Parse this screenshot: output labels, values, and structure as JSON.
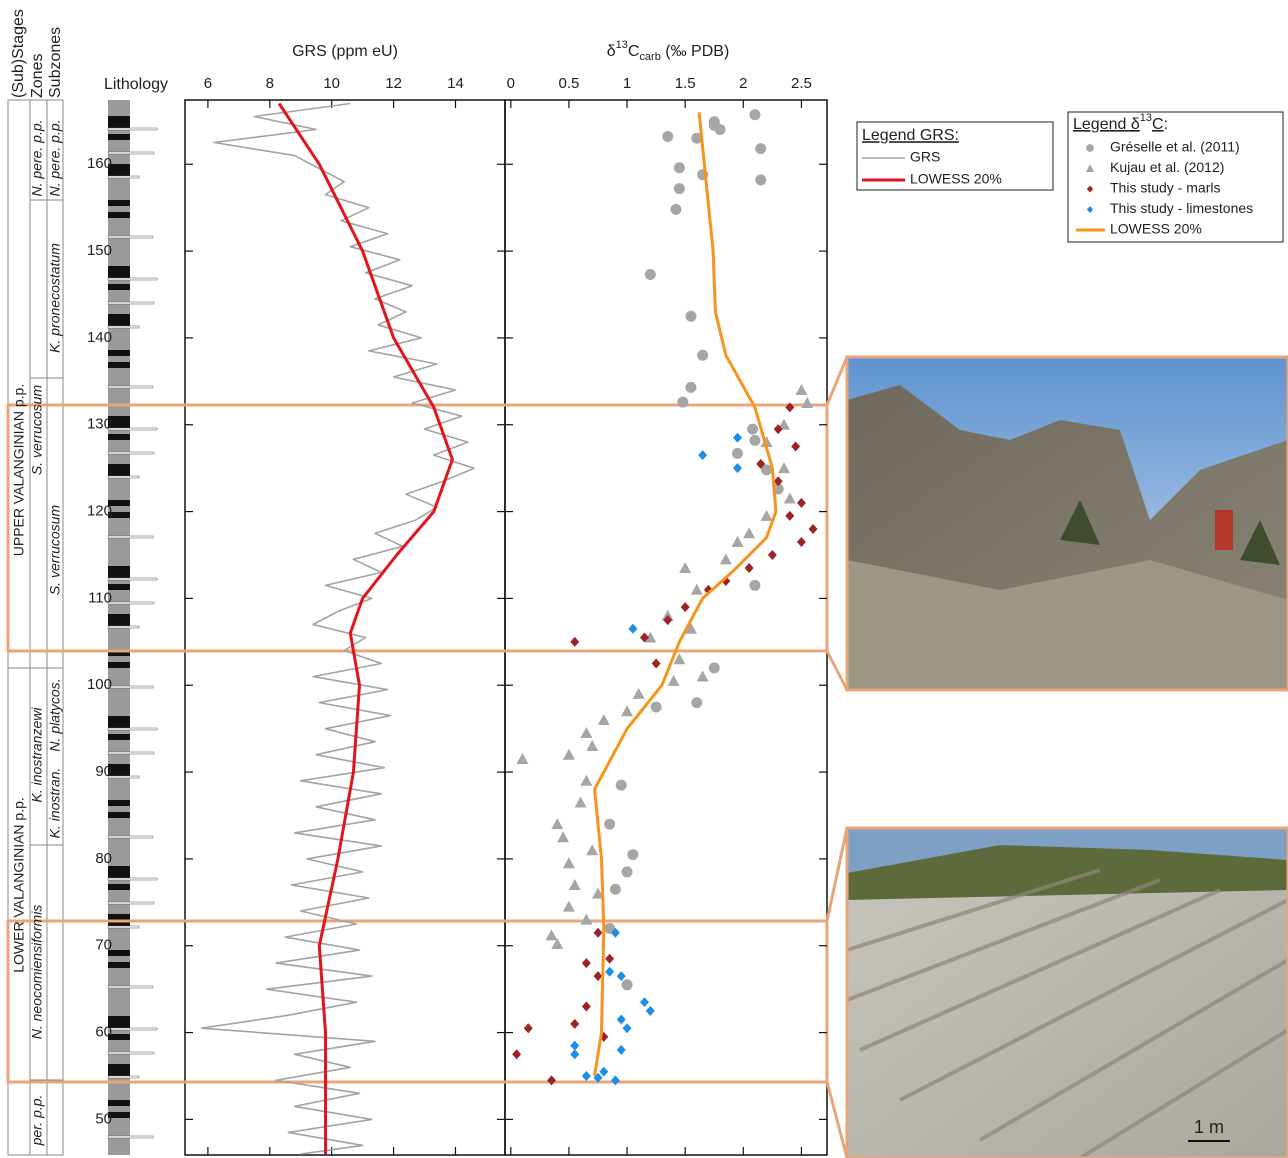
{
  "depth_axis": {
    "ylim": [
      45.9,
      167.4
    ],
    "yticks": [
      50,
      60,
      70,
      80,
      90,
      100,
      110,
      120,
      130,
      140,
      150,
      160
    ]
  },
  "headers": {
    "stages": "(Sub)Stages",
    "zones": "Zones",
    "subzones": "Subzones",
    "lithology": "Lithology"
  },
  "columns": {
    "stages": [
      "UPPER VALANGINIAN p.p.",
      "LOWER VALANGINIAN p.p."
    ],
    "zones": [
      "N. pere. p.p.",
      "S. verrucosum",
      "K. inostranzewi",
      "N. neocomiensiformis",
      "per. p.p."
    ],
    "subzones": [
      "N. pere. p.p.",
      "K. pronecostatum",
      "S. verrucosum",
      "N. platycos.",
      "K. inostran."
    ]
  },
  "chart_data": [
    {
      "type": "line",
      "title": "GRS (ppm eU)",
      "xlim": [
        5.26,
        15.6
      ],
      "xticks": [
        6,
        8,
        10,
        12,
        14
      ],
      "legend_title": "Legend GRS:",
      "series": [
        {
          "name": "GRS",
          "color": "#a3a3a3",
          "marker": "line",
          "depth": [
            167,
            165.5,
            164,
            162.5,
            161,
            159.5,
            158,
            156.5,
            155,
            153.5,
            152,
            150.5,
            149,
            147.5,
            146,
            144.5,
            143,
            141.5,
            140,
            138.5,
            137,
            135.5,
            134,
            132.5,
            131,
            129.5,
            128,
            126.5,
            125,
            123.5,
            122,
            120.5,
            119,
            117.5,
            116,
            114.5,
            113,
            111.5,
            110,
            108.5,
            107,
            105.5,
            104,
            102.5,
            101,
            99.5,
            98,
            96.5,
            95,
            93.5,
            92,
            90.5,
            89,
            87.5,
            86,
            84.5,
            83,
            81.5,
            80,
            78.5,
            77,
            75.5,
            74,
            72.5,
            71,
            69.5,
            68,
            66.5,
            65,
            63.5,
            62,
            60.5,
            59,
            57.5,
            56,
            54.5,
            53,
            51.5,
            50,
            48.5,
            47,
            46
          ],
          "values": [
            10.6,
            7.5,
            9.5,
            6.2,
            8.8,
            9.6,
            10.4,
            9.8,
            11.2,
            10.3,
            11.8,
            10.6,
            12.2,
            11.1,
            12.6,
            11.4,
            12.4,
            11.5,
            12.9,
            11.2,
            13.4,
            12.0,
            14.0,
            12.6,
            14.2,
            13.0,
            14.4,
            13.3,
            14.6,
            13.6,
            12.4,
            13.4,
            12.7,
            11.4,
            12.3,
            10.7,
            11.6,
            9.8,
            11.3,
            10.2,
            9.4,
            11.1,
            10.4,
            11.6,
            9.4,
            11.8,
            9.6,
            11.9,
            9.8,
            11.4,
            9.5,
            11.7,
            9.0,
            11.6,
            9.5,
            11.4,
            8.8,
            11.6,
            9.2,
            11.0,
            8.7,
            11.2,
            9.0,
            10.8,
            8.5,
            10.9,
            8.2,
            11.3,
            7.9,
            10.8,
            8.6,
            5.8,
            11.4,
            8.8,
            10.6,
            8.2,
            10.9,
            8.8,
            11.3,
            8.6,
            11.0,
            9.0
          ]
        },
        {
          "name": "LOWESS 20%",
          "color": "#e3141c",
          "marker": "thick-line",
          "depth": [
            167,
            160,
            150,
            140,
            132,
            126,
            120,
            115,
            110,
            106,
            100,
            90,
            80,
            70,
            60,
            50,
            46
          ],
          "values": [
            8.3,
            9.6,
            11.0,
            12.0,
            13.3,
            13.9,
            13.3,
            12.1,
            11.0,
            10.6,
            10.9,
            10.7,
            10.2,
            9.6,
            9.8,
            9.8,
            9.8
          ]
        }
      ]
    },
    {
      "type": "scatter",
      "title": [
        "δ",
        "13",
        "C",
        "carb",
        " (‰ PDB)"
      ],
      "xlim": [
        -0.05,
        2.72
      ],
      "xticks": [
        0,
        0.5,
        1,
        1.5,
        2,
        2.5
      ],
      "legend_title": [
        "Legend δ",
        "13",
        "C",
        ":"
      ],
      "series": [
        {
          "name": "Gréselle et al. (2011)",
          "color": "#a6a6a6",
          "marker": "circle",
          "depth": [
            165.7,
            164.9,
            164.5,
            164,
            163.2,
            163,
            161.8,
            159.6,
            158.8,
            158.2,
            157.2,
            154.8,
            147.3,
            142.5,
            138,
            134.3,
            132.6,
            129.5,
            128.2,
            126.7,
            124.8,
            122.6,
            111.5,
            102,
            98,
            97.5,
            88.5,
            84,
            80.5,
            78.5,
            76.5,
            72,
            65.5
          ],
          "values": [
            2.1,
            1.75,
            1.75,
            1.8,
            1.35,
            1.6,
            2.15,
            1.45,
            1.65,
            2.15,
            1.45,
            1.42,
            1.2,
            1.55,
            1.65,
            1.55,
            1.48,
            2.08,
            2.1,
            1.95,
            2.2,
            2.3,
            2.1,
            1.75,
            1.6,
            1.25,
            0.95,
            0.85,
            1.05,
            1.0,
            0.9,
            0.85,
            1.0
          ]
        },
        {
          "name": "Kujau et al. (2012)",
          "color": "#a6a6a6",
          "marker": "triangle",
          "depth": [
            134,
            132.5,
            130,
            128,
            125,
            121.5,
            119.5,
            117.5,
            116.5,
            114.5,
            113.5,
            111,
            108,
            106.5,
            105.5,
            103,
            101,
            100.5,
            99,
            97,
            96,
            94.5,
            93,
            92,
            91.5,
            89,
            86.5,
            84,
            82.5,
            81,
            79.5,
            77,
            76,
            74.5,
            73,
            71.2,
            70.2
          ],
          "values": [
            2.5,
            2.55,
            2.35,
            2.2,
            2.35,
            2.4,
            2.2,
            2.05,
            1.95,
            1.85,
            1.5,
            1.6,
            1.35,
            1.55,
            1.2,
            1.45,
            1.65,
            1.4,
            1.1,
            1.0,
            0.8,
            0.65,
            0.7,
            0.5,
            0.1,
            0.65,
            0.6,
            0.4,
            0.45,
            0.7,
            0.5,
            0.55,
            0.75,
            0.5,
            0.65,
            0.35,
            0.4
          ]
        },
        {
          "name": "This study - marls",
          "color": "#9b2525",
          "marker": "diamond",
          "depth": [
            132,
            129.5,
            127.5,
            125.5,
            123.5,
            121,
            119.5,
            118,
            116.5,
            115,
            113.5,
            112,
            111,
            109,
            107.5,
            105.5,
            105,
            102.5,
            71.5,
            68.5,
            68,
            66.5,
            63,
            61,
            60.5,
            59.5,
            57.5,
            54.5
          ],
          "values": [
            2.4,
            2.3,
            2.45,
            2.15,
            2.3,
            2.5,
            2.4,
            2.6,
            2.5,
            2.25,
            2.05,
            1.85,
            1.7,
            1.5,
            1.35,
            1.15,
            0.55,
            1.25,
            0.75,
            0.85,
            0.65,
            0.75,
            0.65,
            0.55,
            0.15,
            0.8,
            0.05,
            0.35
          ]
        },
        {
          "name": "This study - limestones",
          "color": "#1e8fe8",
          "marker": "diamond",
          "depth": [
            128.5,
            126.5,
            125,
            106.5,
            71.5,
            67,
            66.5,
            63.5,
            62.5,
            61.5,
            60.5,
            58.5,
            58,
            57.5,
            55.5,
            55,
            54.8,
            54.5
          ],
          "values": [
            1.95,
            1.65,
            1.95,
            1.05,
            0.9,
            0.85,
            0.95,
            1.15,
            1.2,
            0.95,
            1.0,
            0.55,
            0.95,
            0.55,
            0.8,
            0.65,
            0.75,
            0.9
          ]
        },
        {
          "name": "LOWESS 20%",
          "color": "#f7941d",
          "marker": "thick-line",
          "depth": [
            166,
            150,
            143,
            138,
            132,
            125,
            120,
            117,
            113,
            110,
            105,
            100,
            95,
            88,
            80,
            72,
            60,
            55
          ],
          "values": [
            1.62,
            1.74,
            1.76,
            1.85,
            2.1,
            2.25,
            2.28,
            2.2,
            1.9,
            1.65,
            1.45,
            1.3,
            1.0,
            0.72,
            0.78,
            0.8,
            0.78,
            0.72
          ]
        }
      ]
    }
  ],
  "photo": {
    "scale_label": "1 m"
  }
}
